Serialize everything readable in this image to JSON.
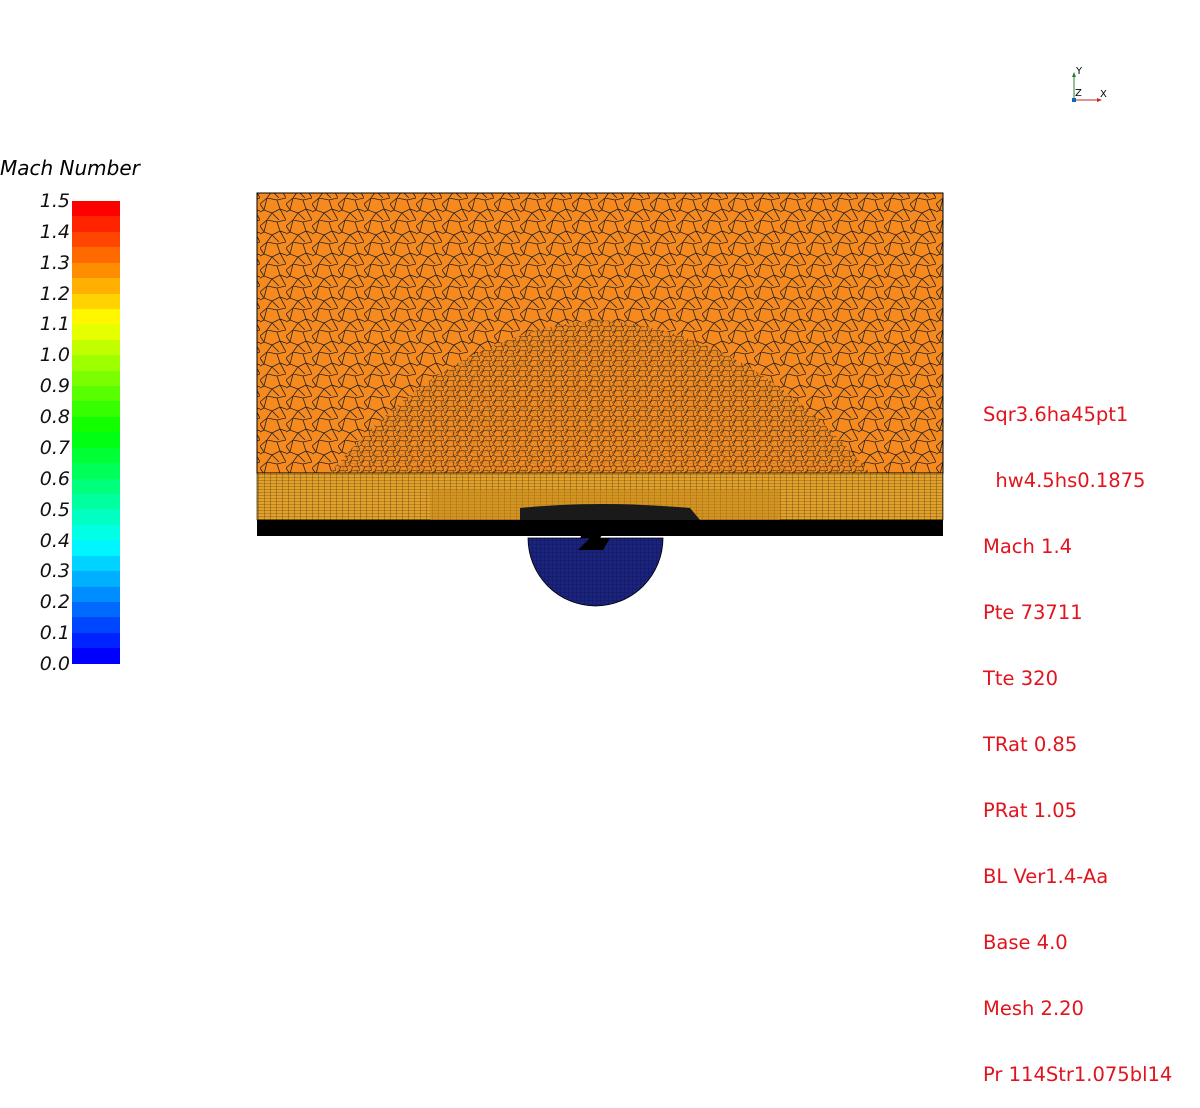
{
  "legend": {
    "title": "Mach Number",
    "ticks": [
      "1.5",
      "1.4",
      "1.3",
      "1.2",
      "1.1",
      "1.0",
      "0.9",
      "0.8",
      "0.7",
      "0.6",
      "0.5",
      "0.4",
      "0.3",
      "0.2",
      "0.1",
      "0.0"
    ],
    "range": [
      0.0,
      1.5
    ],
    "colormap": "rainbow (blue to red)"
  },
  "axes": {
    "y_label": "Y",
    "z_label": "Z",
    "x_label": "X"
  },
  "case_info": [
    "Sqr3.6ha45pt1",
    "  hw4.5hs0.1875",
    "Mach 1.4",
    "Pte 73711",
    "Tte 320",
    "TRat 0.85",
    "PRat 1.05",
    "BL Ver1.4-Aa",
    "Base 4.0",
    "Mesh 2.20",
    "Pr 114Str1.075bl14"
  ],
  "colors": {
    "mesh_fill": "#f78a1e",
    "mesh_lines": "#1a1a1a",
    "boundary_layer": "#e8a020",
    "inlet_mesh": "#1a237e",
    "annotation_text": "#e1141e"
  }
}
